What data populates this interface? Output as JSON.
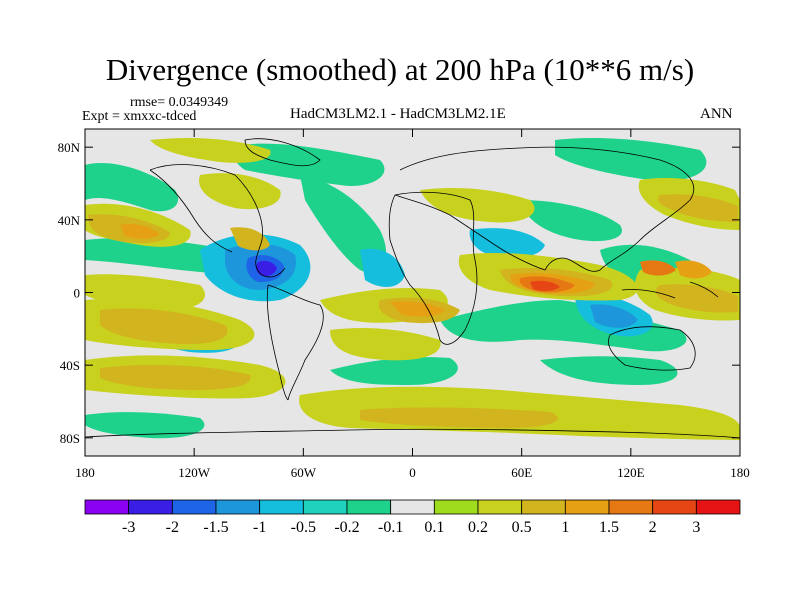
{
  "title": "Divergence (smoothed) at 200 hPa (10**6 m/s)",
  "rmse_label": "rmse= 0.0349349",
  "expt_label": "Expt = xmxxc-tdced",
  "comparison_label": "HadCM3LM2.1 - HadCM3LM2.1E",
  "season_label": "ANN",
  "axes": {
    "lon_range": [
      -180,
      180
    ],
    "lat_range": [
      -90,
      90
    ],
    "y_ticks": [
      {
        "value": 80,
        "label": "80N"
      },
      {
        "value": 40,
        "label": "40N"
      },
      {
        "value": 0,
        "label": "0"
      },
      {
        "value": -40,
        "label": "40S"
      },
      {
        "value": -80,
        "label": "80S"
      }
    ],
    "x_ticks": [
      {
        "value": -180,
        "label": "180"
      },
      {
        "value": -120,
        "label": "120W"
      },
      {
        "value": -60,
        "label": "60W"
      },
      {
        "value": 0,
        "label": "0"
      },
      {
        "value": 60,
        "label": "60E"
      },
      {
        "value": 120,
        "label": "120E"
      },
      {
        "value": 180,
        "label": "180"
      }
    ]
  },
  "colorbar": {
    "colors": [
      "#8a00f0",
      "#3a1ee6",
      "#1e64e6",
      "#1e96dc",
      "#14bedc",
      "#1ed2be",
      "#1ed28c",
      "#e6e6e6",
      "#a0dc1e",
      "#c8d21e",
      "#d2b41e",
      "#e6a014",
      "#e67814",
      "#e64614",
      "#e61414"
    ],
    "labels": [
      "-3",
      "-2",
      "-1.5",
      "-1",
      "-0.5",
      "-0.2",
      "-0.1",
      "0.1",
      "0.2",
      "0.5",
      "1",
      "1.5",
      "2",
      "3"
    ]
  },
  "field_colors": {
    "background": "#e6e6e6",
    "coast": "#000000"
  }
}
